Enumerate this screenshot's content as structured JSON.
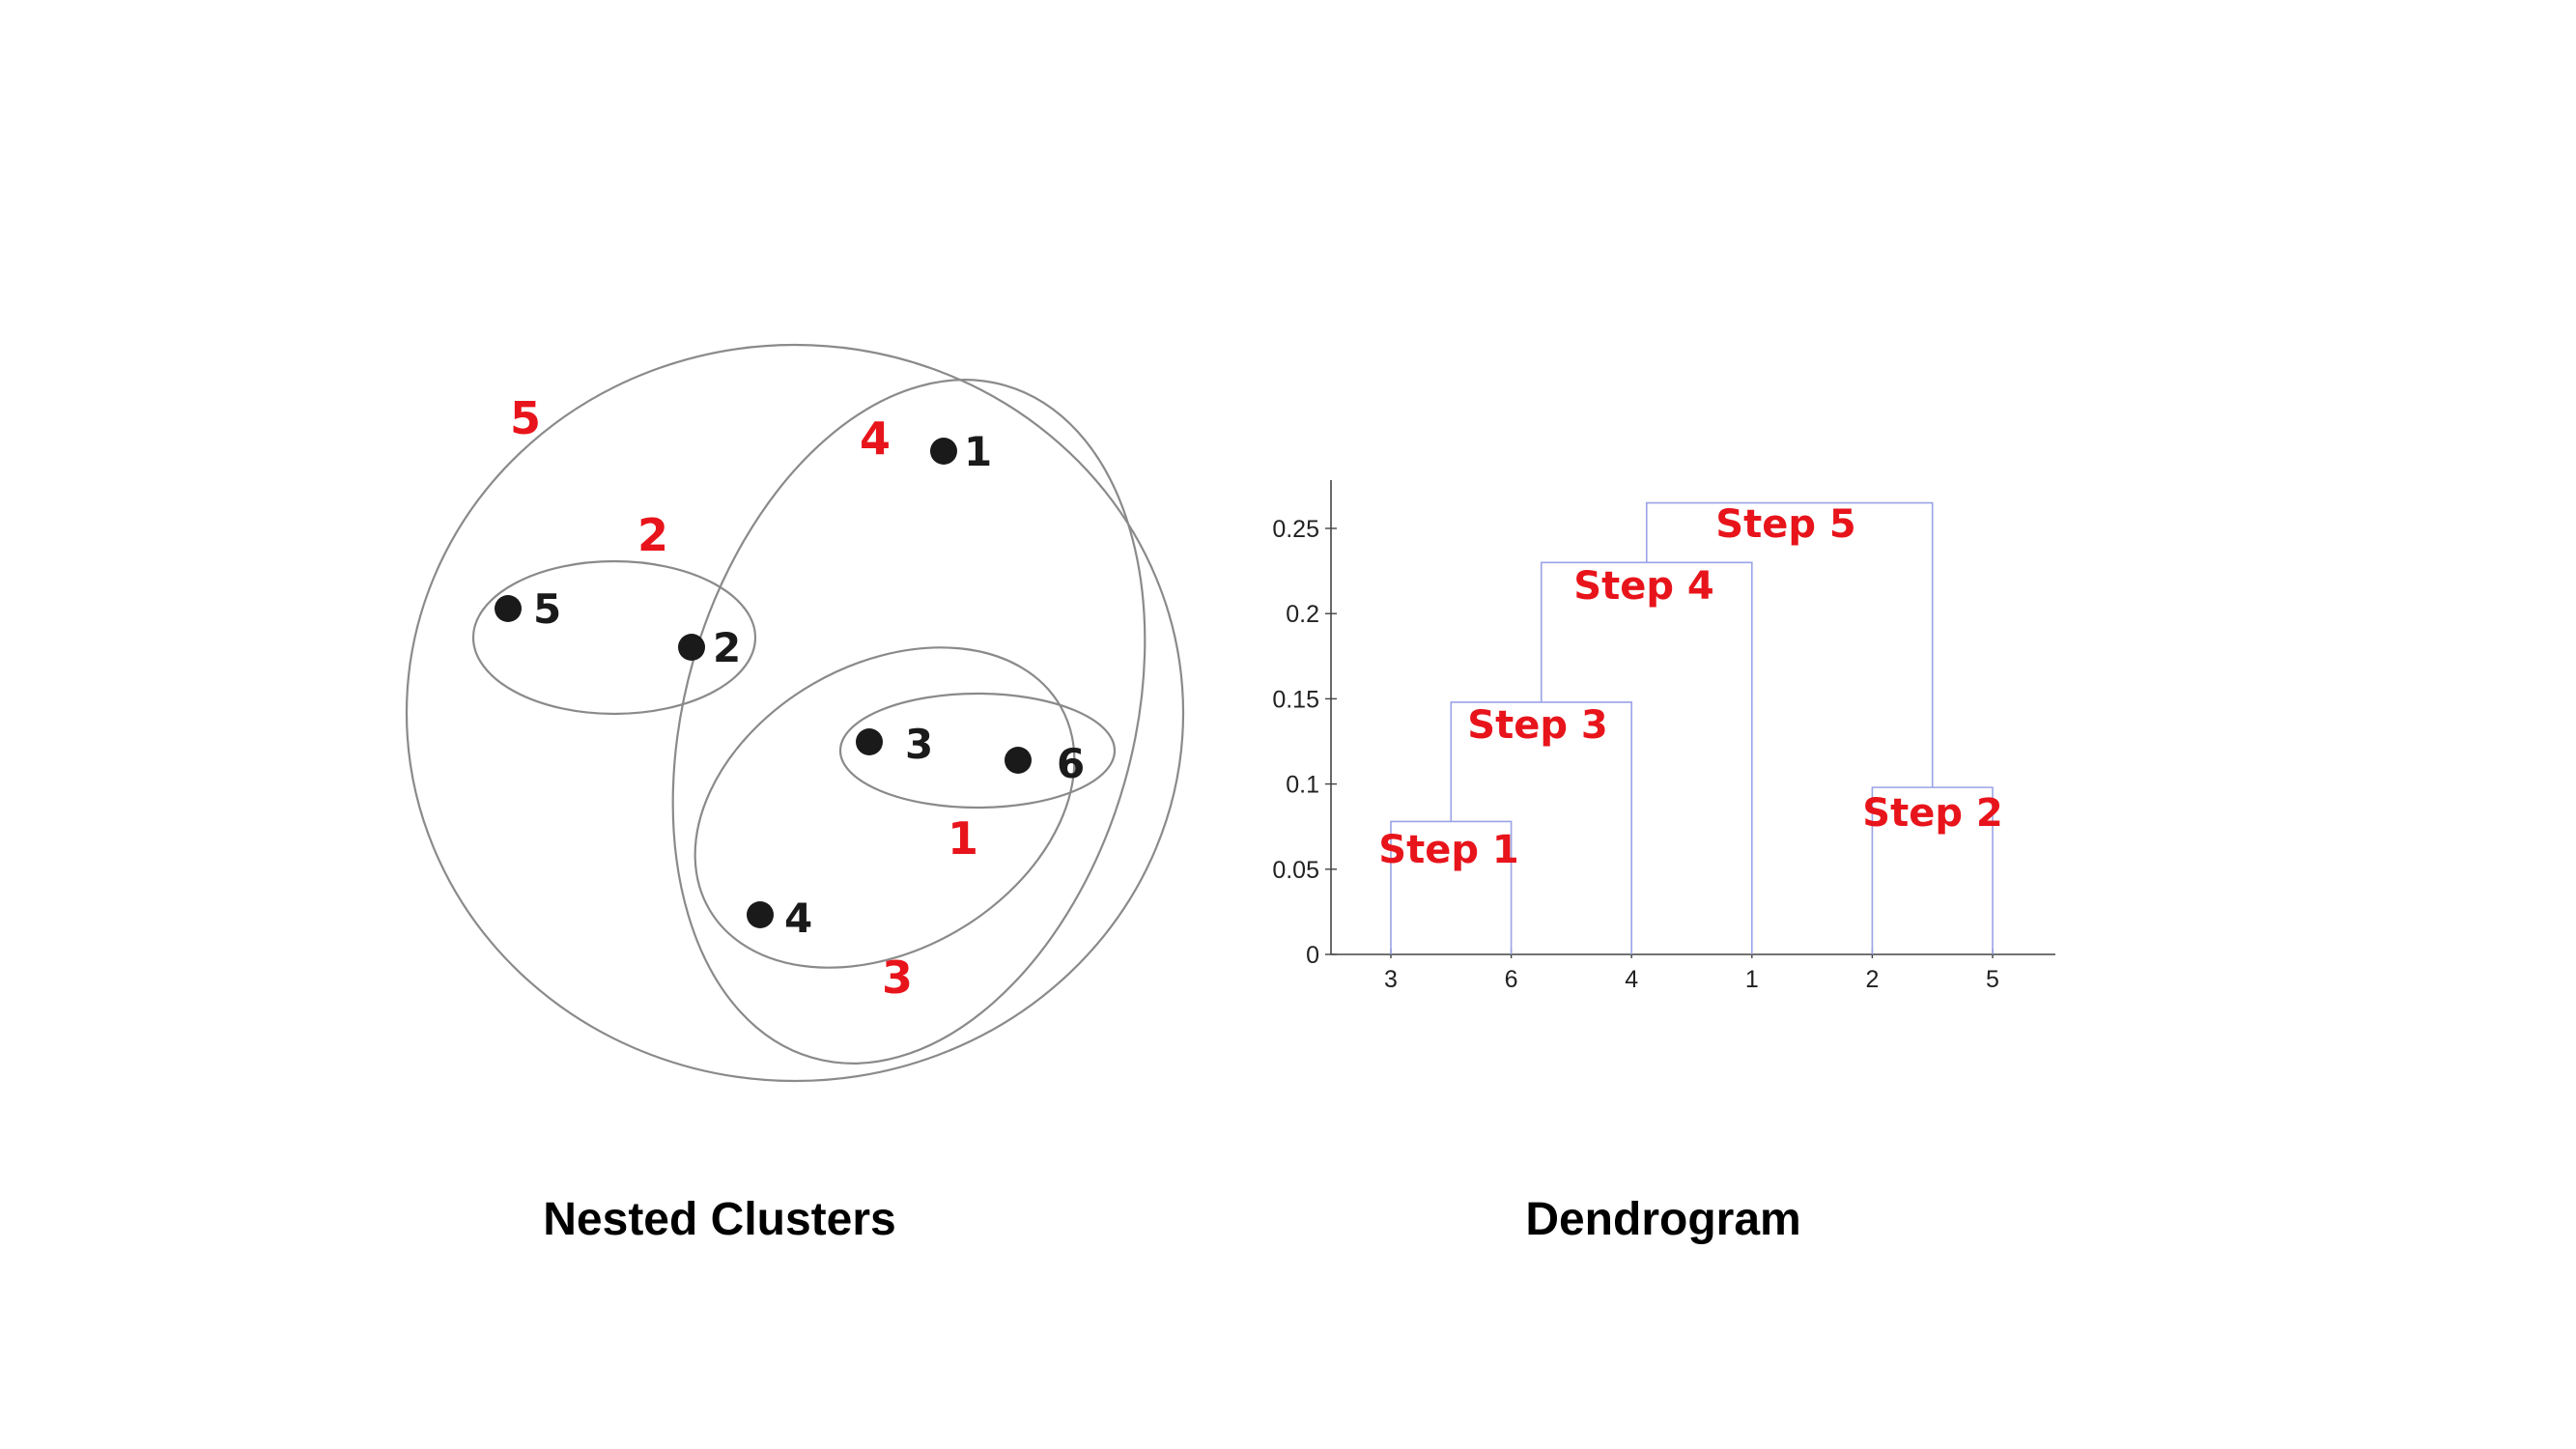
{
  "nested_clusters": {
    "caption": "Nested Clusters",
    "points": [
      {
        "id": "1",
        "label": "1"
      },
      {
        "id": "2",
        "label": "2"
      },
      {
        "id": "3",
        "label": "3"
      },
      {
        "id": "4",
        "label": "4"
      },
      {
        "id": "5",
        "label": "5"
      },
      {
        "id": "6",
        "label": "6"
      }
    ],
    "cluster_labels": [
      {
        "id": "c1",
        "label": "1"
      },
      {
        "id": "c2",
        "label": "2"
      },
      {
        "id": "c3",
        "label": "3"
      },
      {
        "id": "c4",
        "label": "4"
      },
      {
        "id": "c5",
        "label": "5"
      }
    ]
  },
  "dendrogram": {
    "caption": "Dendrogram",
    "steps": [
      "Step 1",
      "Step 2",
      "Step 3",
      "Step 4",
      "Step 5"
    ]
  },
  "chart_data": {
    "type": "dendrogram",
    "leaf_order": [
      "3",
      "6",
      "4",
      "1",
      "2",
      "5"
    ],
    "y_ticks": [
      "0",
      "0.05",
      "0.1",
      "0.15",
      "0.2",
      "0.25"
    ],
    "ylim": [
      0,
      0.27
    ],
    "merges": [
      {
        "step": "Step 1",
        "left": [
          "3"
        ],
        "right": [
          "6"
        ],
        "height": 0.078
      },
      {
        "step": "Step 2",
        "left": [
          "2"
        ],
        "right": [
          "5"
        ],
        "height": 0.098
      },
      {
        "step": "Step 3",
        "left": [
          "3",
          "6"
        ],
        "right": [
          "4"
        ],
        "height": 0.148
      },
      {
        "step": "Step 4",
        "left": [
          "3",
          "6",
          "4"
        ],
        "right": [
          "1"
        ],
        "height": 0.23
      },
      {
        "step": "Step 5",
        "left": [
          "3",
          "6",
          "4",
          "1"
        ],
        "right": [
          "2",
          "5"
        ],
        "height": 0.265
      }
    ],
    "colors": {
      "branches": "#9aa3e6",
      "step_labels": "#e8141b"
    }
  }
}
